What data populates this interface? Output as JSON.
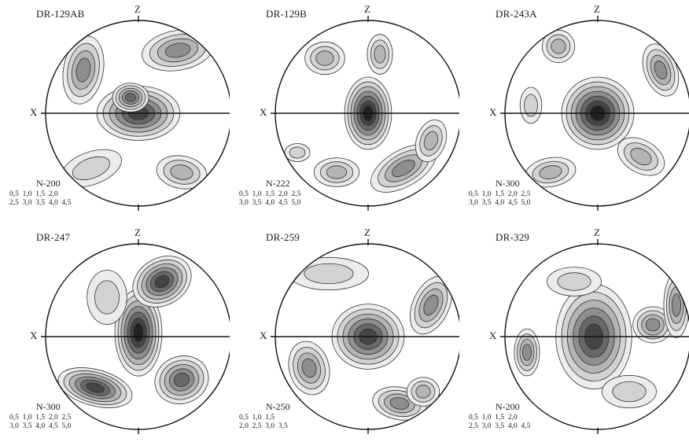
{
  "axis_labels": {
    "z": "Z",
    "x": "X"
  },
  "panels": [
    {
      "id": "DR-129AB",
      "n": "N-200",
      "contours": [
        "0,5  1,0  1,5  2,0",
        "2,5  3,0  3,5  4,0  4,5"
      ]
    },
    {
      "id": "DR-129B",
      "n": "N-222",
      "contours": [
        "0,5  1,0  1,5  2,0  2,5",
        "3,0  3,5  4,0  4,5  5,0"
      ]
    },
    {
      "id": "DR-243A",
      "n": "N-300",
      "contours": [
        "0,5  1,0  1,5  2,0  2,5",
        "3,0  3,5  4,0  4,5  5,0"
      ]
    },
    {
      "id": "DR-247",
      "n": "N-300",
      "contours": [
        "0,5  1,0  1,5  2,0  2,5",
        "3,0  3,5  4,0  4,5  5,0"
      ]
    },
    {
      "id": "DR-259",
      "n": "N-250",
      "contours": [
        "0,5  1,0  1,5",
        "2,0  2,5  3,0  3,5"
      ]
    },
    {
      "id": "DR-329",
      "n": "N-200",
      "contours": [
        "0,5  1,0  1,5  2,0",
        "2,5  3,0  3,5  4,0  4,5"
      ]
    }
  ],
  "shading_colors": [
    "#ececec",
    "#d2d2d2",
    "#b4b4b4",
    "#8e8e8e",
    "#686868",
    "#444444",
    "#222222"
  ]
}
